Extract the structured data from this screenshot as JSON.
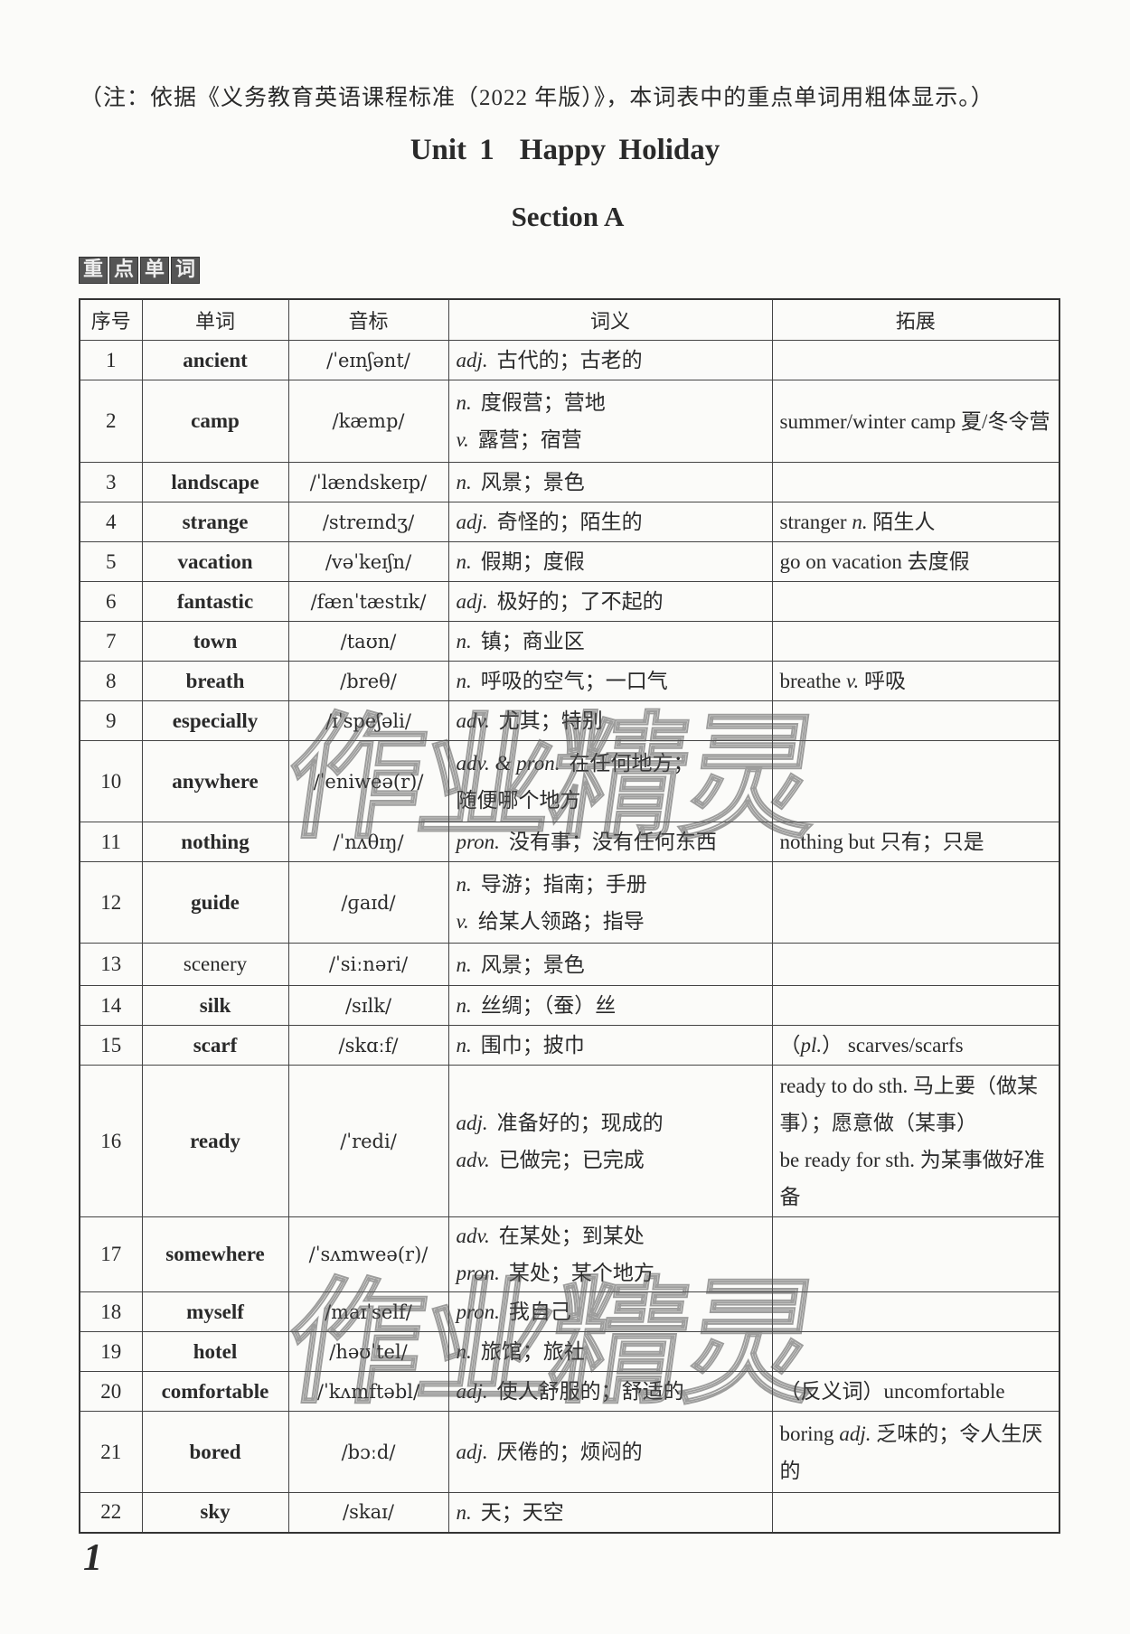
{
  "note": "（注：依据《义务教育英语课程标准（2022 年版）》，本词表中的重点单词用粗体显示。）",
  "unit": {
    "label": "Unit 1",
    "title": "Happy Holiday"
  },
  "section": "Section A",
  "badge": [
    "重",
    "点",
    "单",
    "词"
  ],
  "table": {
    "headers": [
      "序号",
      "单词",
      "音标",
      "词义",
      "拓展"
    ],
    "rows": [
      {
        "no": "1",
        "word": "ancient",
        "bold": true,
        "ipa": "/ˈeɪnʃənt/",
        "meaning": [
          {
            "pos": "adj.",
            "text": "古代的；古老的"
          }
        ],
        "ext": []
      },
      {
        "no": "2",
        "word": "camp",
        "bold": true,
        "ipa": "/kæmp/",
        "meaning": [
          {
            "pos": "n.",
            "text": "度假营；营地"
          },
          {
            "pos": "v.",
            "text": "露营；宿营"
          }
        ],
        "ext": [
          [
            {
              "t": "summer/winter camp 夏/冬令营"
            }
          ]
        ]
      },
      {
        "no": "3",
        "word": "landscape",
        "bold": true,
        "ipa": "/ˈlændskeɪp/",
        "meaning": [
          {
            "pos": "n.",
            "text": "风景；景色"
          }
        ],
        "ext": []
      },
      {
        "no": "4",
        "word": "strange",
        "bold": true,
        "ipa": "/streɪndʒ/",
        "meaning": [
          {
            "pos": "adj.",
            "text": "奇怪的；陌生的"
          }
        ],
        "ext": [
          [
            {
              "t": "stranger "
            },
            {
              "t": "n.",
              "i": true
            },
            {
              "t": "  陌生人"
            }
          ]
        ]
      },
      {
        "no": "5",
        "word": "vacation",
        "bold": true,
        "ipa": "/vəˈkeɪʃn/",
        "meaning": [
          {
            "pos": "n.",
            "text": "假期；度假"
          }
        ],
        "ext": [
          [
            {
              "t": "go on vacation 去度假"
            }
          ]
        ]
      },
      {
        "no": "6",
        "word": "fantastic",
        "bold": true,
        "ipa": "/fænˈtæstɪk/",
        "meaning": [
          {
            "pos": "adj.",
            "text": "极好的；了不起的"
          }
        ],
        "ext": []
      },
      {
        "no": "7",
        "word": "town",
        "bold": true,
        "ipa": "/taʊn/",
        "meaning": [
          {
            "pos": "n.",
            "text": "镇；商业区"
          }
        ],
        "ext": []
      },
      {
        "no": "8",
        "word": "breath",
        "bold": true,
        "ipa": "/breθ/",
        "meaning": [
          {
            "pos": "n.",
            "text": "呼吸的空气；一口气"
          }
        ],
        "ext": [
          [
            {
              "t": "breathe "
            },
            {
              "t": "v.",
              "i": true
            },
            {
              "t": "  呼吸"
            }
          ]
        ]
      },
      {
        "no": "9",
        "word": "especially",
        "bold": true,
        "ipa": "/ɪˈspeʃəli/",
        "meaning": [
          {
            "pos": "adv.",
            "text": "尤其；特别"
          }
        ],
        "ext": []
      },
      {
        "no": "10",
        "word": "anywhere",
        "bold": true,
        "ipa": "/ˈeniweə(r)/",
        "meaning": [
          {
            "pos": "adv. & pron.",
            "text": "在任何地方；"
          },
          {
            "pos": "",
            "text": "随便哪个地方"
          }
        ],
        "ext": []
      },
      {
        "no": "11",
        "word": "nothing",
        "bold": true,
        "ipa": "/ˈnʌθɪŋ/",
        "meaning": [
          {
            "pos": "pron.",
            "text": "没有事；没有任何东西"
          }
        ],
        "ext": [
          [
            {
              "t": "nothing but 只有；只是"
            }
          ]
        ]
      },
      {
        "no": "12",
        "word": "guide",
        "bold": true,
        "ipa": "/ɡaɪd/",
        "meaning": [
          {
            "pos": "n.",
            "text": "导游；指南；手册"
          },
          {
            "pos": "v.",
            "text": "给某人领路；指导"
          }
        ],
        "ext": []
      },
      {
        "no": "13",
        "word": "scenery",
        "bold": false,
        "ipa": "/ˈsiːnəri/",
        "meaning": [
          {
            "pos": "n.",
            "text": "风景；景色"
          }
        ],
        "ext": []
      },
      {
        "no": "14",
        "word": "silk",
        "bold": true,
        "ipa": "/sɪlk/",
        "meaning": [
          {
            "pos": "n.",
            "text": "丝绸；（蚕）丝"
          }
        ],
        "ext": []
      },
      {
        "no": "15",
        "word": "scarf",
        "bold": true,
        "ipa": "/skɑːf/",
        "meaning": [
          {
            "pos": "n.",
            "text": "围巾；披巾"
          }
        ],
        "ext": [
          [
            {
              "t": "（"
            },
            {
              "t": "pl.",
              "i": true
            },
            {
              "t": "） scarves/scarfs"
            }
          ]
        ]
      },
      {
        "no": "16",
        "word": "ready",
        "bold": true,
        "ipa": "/ˈredi/",
        "meaning": [
          {
            "pos": "adj.",
            "text": "准备好的；现成的"
          },
          {
            "pos": "adv.",
            "text": "已做完；已完成"
          }
        ],
        "ext": [
          [
            {
              "t": "ready to do sth. 马上要（做某事）；愿意做（某事）"
            }
          ],
          [
            {
              "t": "be ready for sth. 为某事做好准备"
            }
          ]
        ]
      },
      {
        "no": "17",
        "word": "somewhere",
        "bold": true,
        "ipa": "/ˈsʌmweə(r)/",
        "meaning": [
          {
            "pos": "adv.",
            "text": "在某处；到某处"
          },
          {
            "pos": "pron.",
            "text": "某处；某个地方"
          }
        ],
        "ext": []
      },
      {
        "no": "18",
        "word": "myself",
        "bold": true,
        "ipa": "/maɪˈself/",
        "meaning": [
          {
            "pos": "pron.",
            "text": "我自己"
          }
        ],
        "ext": []
      },
      {
        "no": "19",
        "word": "hotel",
        "bold": true,
        "ipa": "/həʊˈtel/",
        "meaning": [
          {
            "pos": "n.",
            "text": "旅馆；旅社"
          }
        ],
        "ext": []
      },
      {
        "no": "20",
        "word": "comfortable",
        "bold": true,
        "ipa": "/ˈkʌmftəbl/",
        "meaning": [
          {
            "pos": "adj.",
            "text": "使人舒服的；舒适的"
          }
        ],
        "ext": [
          [
            {
              "t": "（反义词）uncomfortable"
            }
          ]
        ]
      },
      {
        "no": "21",
        "word": "bored",
        "bold": true,
        "ipa": "/bɔːd/",
        "meaning": [
          {
            "pos": "adj.",
            "text": "厌倦的；烦闷的"
          }
        ],
        "ext": [
          [
            {
              "t": "boring "
            },
            {
              "t": "adj.",
              "i": true
            },
            {
              "t": "  乏味的；令人生厌的"
            }
          ]
        ]
      },
      {
        "no": "22",
        "word": "sky",
        "bold": true,
        "ipa": "/skaɪ/",
        "meaning": [
          {
            "pos": "n.",
            "text": "天；天空"
          }
        ],
        "ext": []
      }
    ]
  },
  "page_number": "1",
  "watermark": "作业精灵"
}
